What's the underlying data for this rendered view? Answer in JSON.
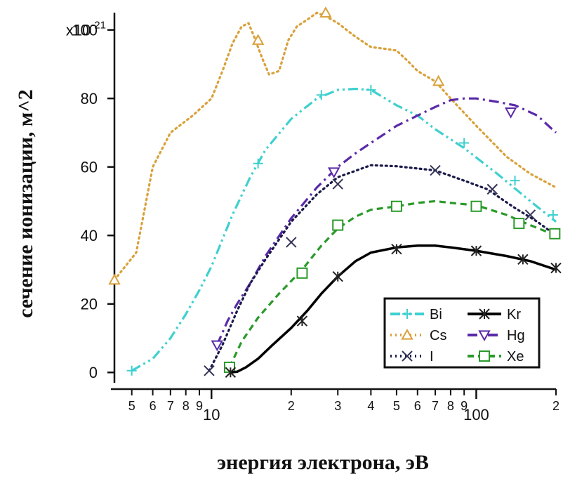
{
  "chart_data": {
    "type": "line",
    "title": "",
    "xlabel": "энергия электрона, эВ",
    "ylabel": "сечение ионизации, м^2",
    "x_scale": "log",
    "xlim": [
      4.3,
      200
    ],
    "ylim": [
      -2,
      103
    ],
    "y_multiplier": "x10",
    "y_multiplier_exp": "-21",
    "y_ticks": [
      0,
      20,
      40,
      60,
      80,
      100
    ],
    "y_tick_labels": [
      "0",
      "20",
      "40",
      "60",
      "80",
      "100"
    ],
    "x_major_ticks": [
      {
        "value": 10,
        "label": "10"
      },
      {
        "value": 100,
        "label": "100"
      }
    ],
    "x_minor_ticks": [
      {
        "value": 5,
        "label": "5"
      },
      {
        "value": 6,
        "label": "6"
      },
      {
        "value": 7,
        "label": "7"
      },
      {
        "value": 8,
        "label": "8"
      },
      {
        "value": 9,
        "label": "9"
      },
      {
        "value": 20,
        "label": "2"
      },
      {
        "value": 30,
        "label": "3"
      },
      {
        "value": 40,
        "label": "4"
      },
      {
        "value": 50,
        "label": "5"
      },
      {
        "value": 60,
        "label": "6"
      },
      {
        "value": 70,
        "label": "7"
      },
      {
        "value": 80,
        "label": "8"
      },
      {
        "value": 90,
        "label": "9"
      },
      {
        "value": 200,
        "label": "2"
      }
    ],
    "legend_position": "bottom-right",
    "series": [
      {
        "name": "Cs",
        "color": "#d9a13a",
        "dash": "dot",
        "marker": "triangle-up",
        "x": [
          4.3,
          5.2,
          6,
          7,
          8.5,
          10,
          11,
          12,
          13,
          13.8,
          14.5,
          15.5,
          16.5,
          18,
          19.5,
          21,
          23,
          25,
          27,
          30,
          35,
          40,
          45,
          50,
          55,
          60,
          70,
          80,
          100,
          130,
          160,
          200
        ],
        "y": [
          27,
          35,
          60,
          70,
          75,
          80,
          88,
          96,
          101,
          102,
          98,
          92,
          87,
          88,
          97,
          101,
          103,
          105,
          104,
          102,
          98,
          95,
          94.5,
          94,
          91,
          88,
          85,
          80,
          72,
          63,
          58,
          54
        ],
        "marker_x": [
          4.3,
          15,
          27,
          72
        ],
        "marker_y": [
          27,
          97,
          105,
          85
        ]
      },
      {
        "name": "Bi",
        "color": "#3fd0d0",
        "dash": "dashdotdot",
        "marker": "plus",
        "x": [
          5,
          6,
          7,
          8,
          9,
          10,
          12,
          14,
          16,
          20,
          25,
          30,
          35,
          40,
          50,
          60,
          70,
          90,
          120,
          160,
          200
        ],
        "y": [
          0.5,
          4,
          10,
          17,
          24,
          31,
          46,
          57,
          65,
          74,
          80,
          82.5,
          82.8,
          82.5,
          78,
          75,
          71,
          65.5,
          58,
          50,
          44
        ],
        "marker_x": [
          5,
          15,
          26,
          40,
          90,
          140,
          195
        ],
        "marker_y": [
          0.5,
          61,
          81,
          82.5,
          67,
          56,
          46
        ]
      },
      {
        "name": "I",
        "color": "#1a1a4a",
        "dash": "dot",
        "marker": "cross",
        "x": [
          9.8,
          11,
          12.5,
          14,
          16,
          20,
          25,
          30,
          40,
          50,
          70,
          90,
          110,
          140,
          170,
          200
        ],
        "y": [
          0.5,
          8,
          18,
          26,
          33,
          44,
          52,
          57,
          60.5,
          60.2,
          59,
          56,
          53.5,
          48,
          44,
          40
        ],
        "marker_x": [
          9.8,
          20,
          30,
          70,
          115,
          160
        ],
        "marker_y": [
          0.5,
          38,
          55,
          59,
          53.5,
          46
        ]
      },
      {
        "name": "Kr",
        "color": "#000000",
        "dash": "solid",
        "marker": "asterisk",
        "x": [
          11.8,
          12.5,
          13.5,
          15,
          17,
          20,
          23,
          26,
          30,
          35,
          40,
          50,
          60,
          70,
          80,
          100,
          130,
          160,
          200
        ],
        "y": [
          0,
          0.2,
          1.5,
          4,
          8,
          13,
          18,
          23,
          28,
          32.5,
          35,
          36.5,
          37,
          37,
          36.5,
          35.5,
          34,
          32.5,
          30
        ],
        "marker_x": [
          11.8,
          22,
          30,
          50,
          100,
          150,
          200
        ],
        "marker_y": [
          0,
          15,
          28,
          36,
          35.5,
          33,
          30.5
        ]
      },
      {
        "name": "Hg",
        "color": "#5a2aa8",
        "dash": "dashdot",
        "marker": "triangle-down",
        "x": [
          10.5,
          11.5,
          12.5,
          14,
          16,
          20,
          25,
          30,
          35,
          40,
          50,
          60,
          70,
          80,
          90,
          100,
          120,
          140,
          170,
          200
        ],
        "y": [
          8,
          15,
          20,
          26,
          34,
          45,
          54,
          60,
          64,
          67,
          72,
          75,
          77.5,
          79.5,
          80,
          80,
          79,
          78,
          75,
          70
        ],
        "marker_x": [
          10.5,
          29,
          135
        ],
        "marker_y": [
          8,
          58.5,
          76
        ]
      },
      {
        "name": "Xe",
        "color": "#2a9a2a",
        "dash": "dash",
        "marker": "square",
        "x": [
          11.7,
          13,
          15,
          18,
          22,
          26,
          30,
          35,
          40,
          50,
          60,
          70,
          80,
          100,
          130,
          160,
          200
        ],
        "y": [
          1.5,
          9,
          16,
          23,
          30,
          37,
          42,
          45.5,
          47.5,
          48.5,
          49.5,
          50,
          49.5,
          48.8,
          46,
          43,
          40
        ],
        "marker_x": [
          11.7,
          22,
          30,
          50,
          100,
          145,
          198
        ],
        "marker_y": [
          1.5,
          29,
          43,
          48.5,
          48.5,
          43.5,
          40.5
        ]
      }
    ],
    "legend": [
      {
        "name": "Bi",
        "col": 0,
        "row": 0
      },
      {
        "name": "Cs",
        "col": 0,
        "row": 1
      },
      {
        "name": "I",
        "col": 0,
        "row": 2
      },
      {
        "name": "Kr",
        "col": 1,
        "row": 0
      },
      {
        "name": "Hg",
        "col": 1,
        "row": 1
      },
      {
        "name": "Xe",
        "col": 1,
        "row": 2
      }
    ]
  }
}
